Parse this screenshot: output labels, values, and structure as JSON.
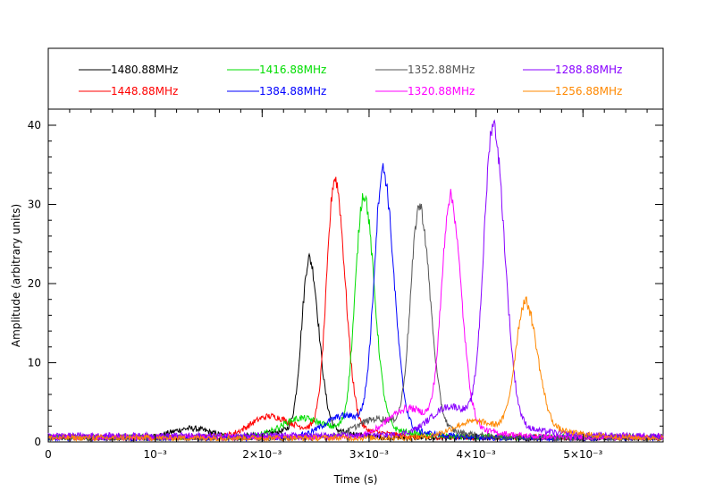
{
  "chart_data": {
    "type": "line",
    "title": "",
    "xlabel": "Time (s)",
    "ylabel": "Amplitude (arbitrary units)",
    "xlim": [
      0,
      0.00575
    ],
    "ylim": [
      0,
      40
    ],
    "grid": false,
    "legend_position": "top, above plot",
    "x_ticks": [
      {
        "value": 0,
        "label": "0"
      },
      {
        "value": 0.001,
        "label": "10⁻³"
      },
      {
        "value": 0.002,
        "label": "2×10⁻³"
      },
      {
        "value": 0.003,
        "label": "3×10⁻³"
      },
      {
        "value": 0.004,
        "label": "4×10⁻³"
      },
      {
        "value": 0.005,
        "label": "5×10⁻³"
      }
    ],
    "y_ticks": [
      0,
      10,
      20,
      30,
      40
    ],
    "series": [
      {
        "name": "1480.88MHz",
        "color": "#000000",
        "peak_time": 0.00244,
        "peak_amplitude": 21.5,
        "baseline": 0.5,
        "width": 7e-05,
        "bump_time": 0.00133,
        "bump_amplitude": 2.0
      },
      {
        "name": "1448.88MHz",
        "color": "#ff0000",
        "peak_time": 0.00268,
        "peak_amplitude": 31.5,
        "baseline": 0.6,
        "width": 7.5e-05,
        "bump_time": 0.00206,
        "bump_amplitude": 4.0
      },
      {
        "name": "1416.88MHz",
        "color": "#00dd00",
        "peak_time": 0.00295,
        "peak_amplitude": 29.5,
        "baseline": 0.6,
        "width": 7.8e-05,
        "bump_time": 0.00235,
        "bump_amplitude": 3.5
      },
      {
        "name": "1384.88MHz",
        "color": "#0000ff",
        "peak_time": 0.00313,
        "peak_amplitude": 32.5,
        "baseline": 0.5,
        "width": 8e-05,
        "bump_time": 0.00275,
        "bump_amplitude": 3.5
      },
      {
        "name": "1352.88MHz",
        "color": "#555555",
        "peak_time": 0.00347,
        "peak_amplitude": 28.0,
        "baseline": 0.5,
        "width": 8e-05,
        "bump_time": 0.00305,
        "bump_amplitude": 3.0
      },
      {
        "name": "1320.88MHz",
        "color": "#ff00ff",
        "peak_time": 0.00376,
        "peak_amplitude": 29.0,
        "baseline": 0.6,
        "width": 8e-05,
        "bump_time": 0.00335,
        "bump_amplitude": 5.0
      },
      {
        "name": "1288.88MHz",
        "color": "#8800ff",
        "peak_time": 0.00416,
        "peak_amplitude": 38.0,
        "baseline": 0.8,
        "width": 8.5e-05,
        "bump_time": 0.00375,
        "bump_amplitude": 5.0
      },
      {
        "name": "1256.88MHz",
        "color": "#ff8800",
        "peak_time": 0.00446,
        "peak_amplitude": 16.0,
        "baseline": 0.5,
        "width": 9e-05,
        "bump_time": 0.00395,
        "bump_amplitude": 2.5
      }
    ]
  }
}
